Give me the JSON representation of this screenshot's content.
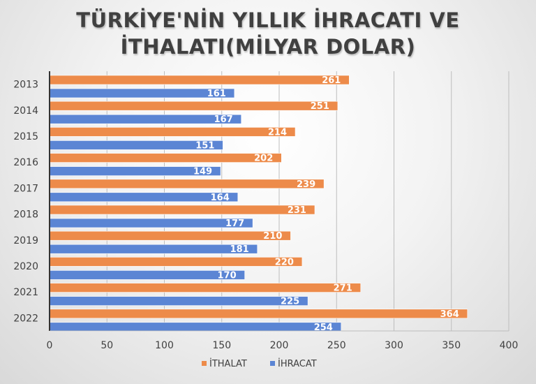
{
  "chart_data": {
    "type": "bar",
    "orientation": "horizontal",
    "title_line1": "TÜRKİYE'NİN YILLIK İHRACATI VE",
    "title_line2": "İTHALATI(MİLYAR DOLAR)",
    "categories": [
      "2013",
      "2014",
      "2015",
      "2016",
      "2017",
      "2018",
      "2019",
      "2020",
      "2021",
      "2022"
    ],
    "series": [
      {
        "name": "İTHALAT",
        "color": "#ed8b4a",
        "values": [
          261,
          251,
          214,
          202,
          239,
          231,
          210,
          220,
          271,
          364
        ]
      },
      {
        "name": "İHRACAT",
        "color": "#5b85d4",
        "values": [
          161,
          167,
          151,
          149,
          164,
          177,
          181,
          170,
          225,
          254
        ]
      }
    ],
    "xlim": [
      0,
      400
    ],
    "xticks": [
      0,
      50,
      100,
      150,
      200,
      250,
      300,
      350,
      400
    ],
    "grid": true,
    "legend_position": "bottom",
    "data_labels": true
  }
}
